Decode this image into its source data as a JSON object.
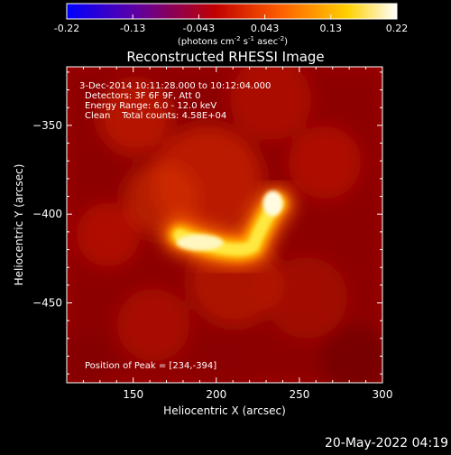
{
  "colorbar": {
    "ticks": [
      "-0.22",
      "-0.13",
      "-0.043",
      "0.043",
      "0.13",
      "0.22"
    ],
    "unit_prefix": "(photons cm",
    "unit_exp1": "-2",
    "unit_mid1": " s",
    "unit_exp2": "-1",
    "unit_mid2": " asec",
    "unit_exp3": "-2",
    "unit_suffix": ")",
    "colormap": [
      "#0000ff",
      "#5a00a8",
      "#c00000",
      "#ff6000",
      "#ffd000",
      "#ffffff"
    ],
    "range": [
      -0.22,
      0.22
    ]
  },
  "chart_data": {
    "type": "heatmap",
    "title": "Reconstructed RHESSI Image",
    "xlabel": "Heliocentric X (arcsec)",
    "ylabel": "Heliocentric Y (arcsec)",
    "xlim": [
      110,
      300
    ],
    "ylim": [
      -495,
      -317
    ],
    "xticks": [
      150,
      200,
      250,
      300
    ],
    "xtick_labels": [
      "150",
      "200",
      "250",
      "300"
    ],
    "yticks": [
      -350,
      -400,
      -450
    ],
    "ytick_labels": [
      "−350",
      "−400",
      "−450"
    ],
    "info_lines": [
      "3-Dec-2014 10:11:28.000 to 10:12:04.000",
      "Detectors: 3F 6F 9F, Att 0",
      "Energy Range: 6.0 - 12.0 keV",
      "Clean    Total counts: 4.58E+04"
    ],
    "peak_label": "Position of Peak = [234,-394]",
    "peak": [
      234,
      -394
    ],
    "sources": [
      {
        "x": 234,
        "y": -394,
        "intensity": 0.22
      },
      {
        "x": 190,
        "y": -417,
        "intensity": 0.2
      }
    ],
    "background_level": 0.045
  },
  "footer": {
    "timestamp": "20-May-2022 04:19"
  }
}
